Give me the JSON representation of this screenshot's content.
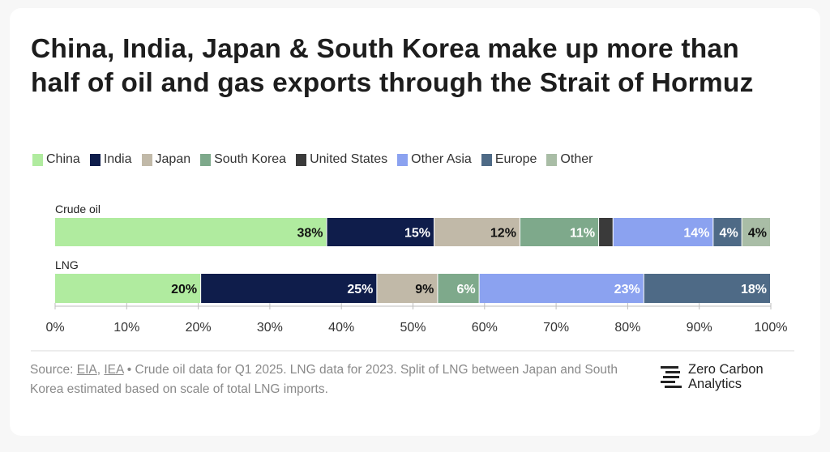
{
  "title": "China, India, Japan & South Korea make up more than half of oil and gas exports through the Strait of Hormuz",
  "legend": [
    {
      "name": "China",
      "color": "#b0eb9f"
    },
    {
      "name": "India",
      "color": "#0f1d4b"
    },
    {
      "name": "Japan",
      "color": "#c1b9a8"
    },
    {
      "name": "South Korea",
      "color": "#7ea98b"
    },
    {
      "name": "United States",
      "color": "#3a3a3a"
    },
    {
      "name": "Other Asia",
      "color": "#8ba2f0"
    },
    {
      "name": "Europe",
      "color": "#4e6a86"
    },
    {
      "name": "Other",
      "color": "#a9bda6"
    }
  ],
  "chart_data": {
    "type": "bar",
    "orientation": "horizontal-stacked",
    "title": "China, India, Japan & South Korea make up more than half of oil and gas exports through the Strait of Hormuz",
    "categories": [
      "Crude oil",
      "LNG"
    ],
    "series": [
      {
        "name": "China",
        "color": "#b0eb9f",
        "values": [
          38,
          20.4
        ],
        "labels": [
          "38%",
          "20%"
        ]
      },
      {
        "name": "India",
        "color": "#0f1d4b",
        "values": [
          15,
          24.6
        ],
        "labels": [
          "15%",
          "25%"
        ]
      },
      {
        "name": "Japan",
        "color": "#c1b9a8",
        "values": [
          12,
          8.5
        ],
        "labels": [
          "12%",
          "9%"
        ]
      },
      {
        "name": "South Korea",
        "color": "#7ea98b",
        "values": [
          11,
          5.8
        ],
        "labels": [
          "11%",
          "6%"
        ]
      },
      {
        "name": "United States",
        "color": "#3a3a3a",
        "values": [
          2,
          0
        ],
        "labels": [
          "",
          ""
        ]
      },
      {
        "name": "Other Asia",
        "color": "#8ba2f0",
        "values": [
          14,
          23
        ],
        "labels": [
          "14%",
          "23%"
        ]
      },
      {
        "name": "Europe",
        "color": "#4e6a86",
        "values": [
          4,
          17.7
        ],
        "labels": [
          "4%",
          "18%"
        ]
      },
      {
        "name": "Other",
        "color": "#a9bda6",
        "values": [
          4,
          0
        ],
        "labels": [
          "4%",
          ""
        ]
      }
    ],
    "xlim": [
      0,
      100
    ],
    "xticks": [
      0,
      10,
      20,
      30,
      40,
      50,
      60,
      70,
      80,
      90,
      100
    ],
    "xtick_labels": [
      "0%",
      "10%",
      "20%",
      "30%",
      "40%",
      "50%",
      "60%",
      "70%",
      "80%",
      "90%",
      "100%"
    ],
    "xlabel": "",
    "ylabel": "",
    "legend_position": "top"
  },
  "source": {
    "prefix": "Source: ",
    "link1": "EIA",
    "sep": ", ",
    "link2": "IEA",
    "text": " • Crude oil data for Q1 2025. LNG data for 2023. Split of LNG between Japan and South Korea estimated based on scale of total LNG imports."
  },
  "brand": {
    "line1": "Zero Carbon",
    "line2": "Analytics"
  }
}
